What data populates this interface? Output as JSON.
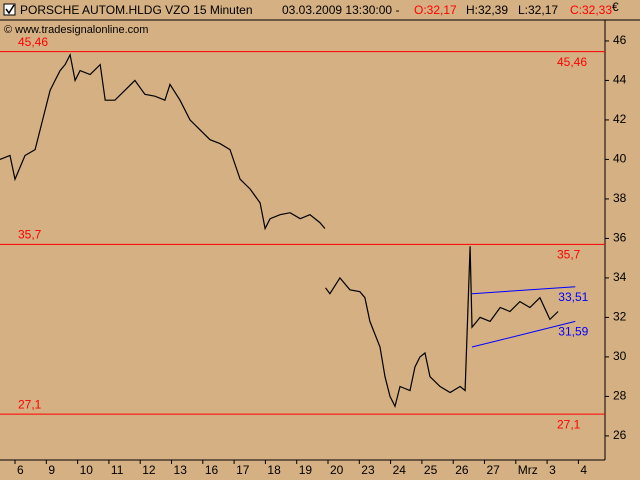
{
  "header": {
    "instrument": "PORSCHE AUTOM.HLDG VZO 15 Minuten",
    "timestamp": "03.03.2009 13:30:00 -",
    "open": "O:32,17",
    "high": "H:32,39",
    "low": "L:32,17",
    "close": "C:32,33"
  },
  "copyright": "© www.tradesignalonline.com",
  "currency": "€",
  "chart_data": {
    "type": "line",
    "color": "#000000",
    "x": [
      -0.48,
      -0.16,
      0,
      0.32,
      0.64,
      0.96,
      1.12,
      1.28,
      1.44,
      1.6,
      1.76,
      1.92,
      2.08,
      2.4,
      2.72,
      2.88,
      3.19,
      3.51,
      3.83,
      4.15,
      4.47,
      4.79,
      4.95,
      5.27,
      5.59,
      5.91,
      6.23,
      6.55,
      6.87,
      7.19,
      7.51,
      7.83,
      7.99,
      8.15,
      8.47,
      8.79,
      9.11,
      9.42,
      9.74,
      9.9,
      9.91,
      9.92,
      10.06,
      10.38,
      10.7,
      11.02,
      11.18,
      11.34,
      11.66,
      11.82,
      11.98,
      12.14,
      12.3,
      12.62,
      12.78,
      12.94,
      13.1,
      13.26,
      13.58,
      13.9,
      14.22,
      14.38,
      14.54,
      14.6,
      14.86,
      15.18,
      15.5,
      15.81,
      16.13,
      16.45,
      16.77,
      17.09,
      17.35
    ],
    "values": [
      40,
      40.2,
      39,
      40.2,
      40.5,
      42.5,
      43.5,
      44,
      44.5,
      44.8,
      45.3,
      44,
      44.5,
      44.3,
      44.8,
      43,
      43,
      43.5,
      44,
      43.3,
      43.2,
      43,
      43.8,
      43,
      42,
      41.5,
      41,
      40.8,
      40.5,
      39,
      38.5,
      37.8,
      36.5,
      37,
      37.2,
      37.3,
      37,
      37.2,
      36.8,
      36.5,
      null,
      33.5,
      33.2,
      34,
      33.4,
      33.3,
      33,
      31.8,
      30.5,
      29,
      28,
      27.5,
      28.5,
      28.3,
      29.5,
      30,
      30.2,
      29,
      28.5,
      28.2,
      28.5,
      28.3,
      35.6,
      31.5,
      32,
      31.8,
      32.5,
      32.3,
      32.8,
      32.5,
      33,
      31.9,
      32.3
    ],
    "xlim": [
      -0.48,
      18.85
    ],
    "xticks": [
      {
        "value": 0,
        "label": "6"
      },
      {
        "value": 1,
        "label": "9"
      },
      {
        "value": 2,
        "label": "10"
      },
      {
        "value": 3,
        "label": "11"
      },
      {
        "value": 4,
        "label": "12"
      },
      {
        "value": 5,
        "label": "13"
      },
      {
        "value": 6,
        "label": "16"
      },
      {
        "value": 7,
        "label": "17"
      },
      {
        "value": 8,
        "label": "18"
      },
      {
        "value": 9,
        "label": "19"
      },
      {
        "value": 10,
        "label": "20"
      },
      {
        "value": 11,
        "label": "23"
      },
      {
        "value": 12,
        "label": "24"
      },
      {
        "value": 13,
        "label": "25"
      },
      {
        "value": 14,
        "label": "26"
      },
      {
        "value": 15,
        "label": "27"
      },
      {
        "value": 16,
        "label": "Mrz"
      },
      {
        "value": 17,
        "label": "3"
      },
      {
        "value": 18,
        "label": "4"
      }
    ],
    "ylim": [
      24.78,
      47.06
    ],
    "yticks": [
      26,
      28,
      30,
      32,
      34,
      36,
      38,
      40,
      42,
      44,
      46
    ],
    "hlines": [
      {
        "value": 45.46,
        "label": "45,46"
      },
      {
        "value": 35.7,
        "label": "35,7"
      },
      {
        "value": 27.1,
        "label": "27,1"
      }
    ],
    "hline_color": "#ff0000",
    "channel_color": "#0000ff",
    "channel": [
      {
        "x": [
          14.6,
          17.9
        ],
        "y": [
          33.2,
          33.55
        ],
        "label": "33,51"
      },
      {
        "x": [
          14.6,
          17.9
        ],
        "y": [
          30.5,
          31.8
        ],
        "label": "31,59"
      }
    ]
  }
}
